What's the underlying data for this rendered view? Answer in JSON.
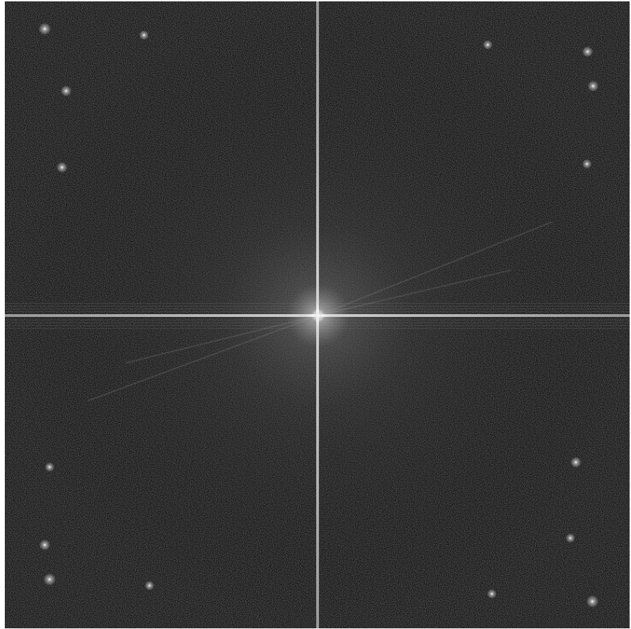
{
  "image": {
    "kind": "fourier-magnitude-spectrum",
    "palette": {
      "background": "#151515",
      "mid_noise": "#3a3a3a",
      "center_glow": "#ffffff",
      "axis_line": "#d8d8d8",
      "peak": "#f2f2f2"
    }
  }
}
